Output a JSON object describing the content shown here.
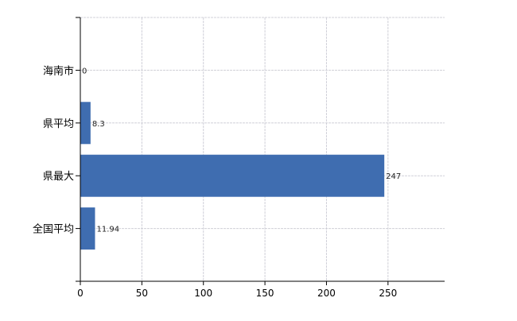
{
  "chart_data": {
    "type": "bar",
    "orientation": "horizontal",
    "categories": [
      "海南市",
      "県平均",
      "県最大",
      "全国平均"
    ],
    "values": [
      0,
      8.3,
      247,
      11.94
    ],
    "value_labels": [
      "0",
      "8.3",
      "247",
      "11.94"
    ],
    "title": "",
    "xlabel": "",
    "ylabel": "",
    "xlim": [
      0,
      296
    ],
    "xticks": [
      0,
      50,
      100,
      150,
      200,
      250
    ],
    "xtick_labels": [
      "0",
      "50",
      "100",
      "150",
      "200",
      "250"
    ],
    "grid": true,
    "legend": "none",
    "bar_color": "#3f6db0",
    "grid_color": "#d0d0d8"
  }
}
